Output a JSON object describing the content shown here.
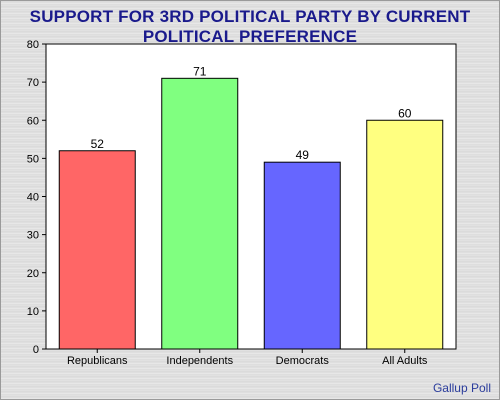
{
  "chart_data": {
    "type": "bar",
    "title_lines": [
      "SUPPORT FOR 3RD POLITICAL PARTY BY CURRENT",
      "POLITICAL PREFERENCE"
    ],
    "categories": [
      "Republicans",
      "Independents",
      "Democrats",
      "All Adults"
    ],
    "values": [
      52,
      71,
      49,
      60
    ],
    "colors": [
      "#ff6666",
      "#80ff80",
      "#6666ff",
      "#ffff80"
    ],
    "xlabel": "",
    "ylabel": "",
    "ylim": [
      0,
      80
    ],
    "yticks": [
      0,
      10,
      20,
      30,
      40,
      50,
      60,
      70,
      80
    ],
    "grid": false,
    "data_labels": true
  },
  "source": "Gallup Poll"
}
